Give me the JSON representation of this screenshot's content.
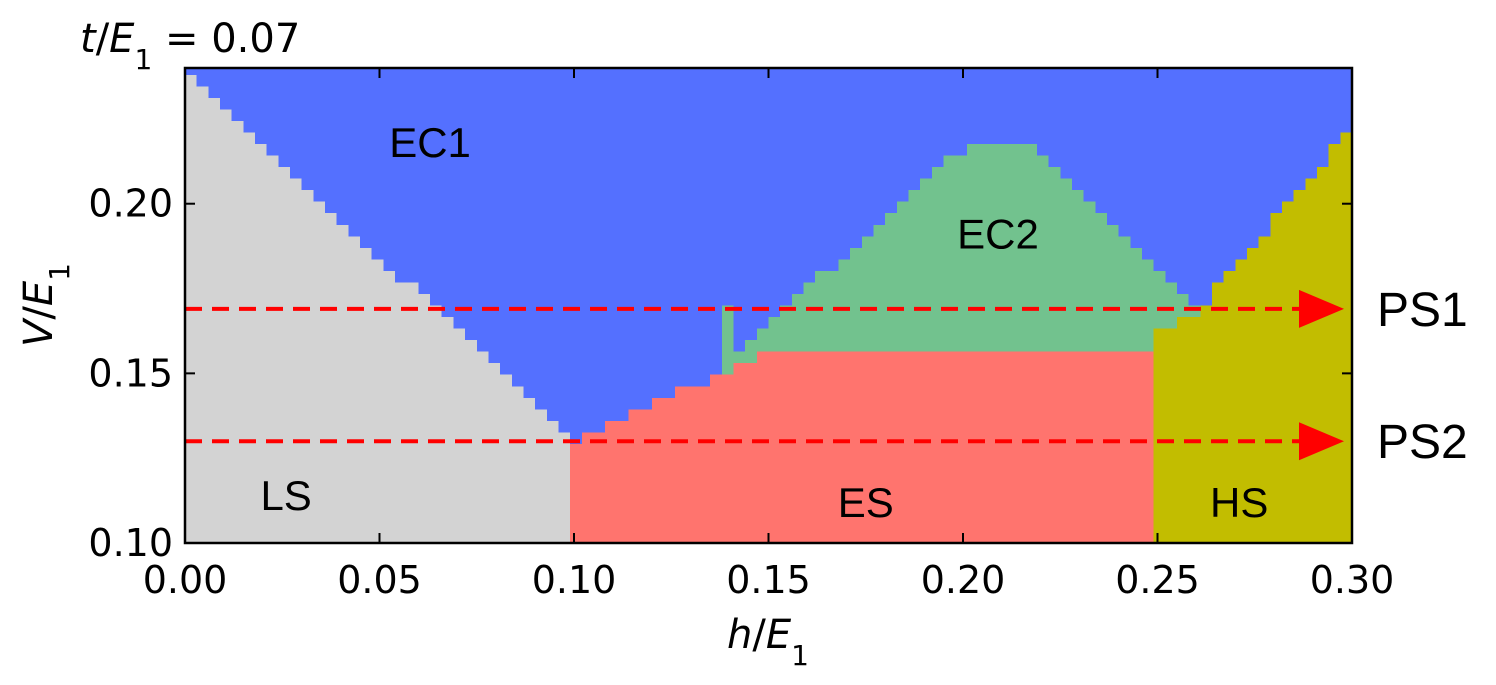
{
  "chart_data": {
    "type": "heatmap",
    "title": "",
    "parameter_label": "t/E1 = 0.07",
    "parameter_parts": {
      "var": "t",
      "sub": "1",
      "value": " = 0.07"
    },
    "xlabel": "h/E1",
    "xlabel_parts": {
      "var": "h",
      "sub": "1"
    },
    "ylabel": "V/E1",
    "ylabel_parts": {
      "var": "V",
      "sub": "1"
    },
    "xlim": [
      0.0,
      0.3
    ],
    "ylim": [
      0.1,
      0.24
    ],
    "x_ticks": [
      {
        "value": 0.0,
        "label": "0.00"
      },
      {
        "value": 0.05,
        "label": "0.05"
      },
      {
        "value": 0.1,
        "label": "0.10"
      },
      {
        "value": 0.15,
        "label": "0.15"
      },
      {
        "value": 0.2,
        "label": "0.20"
      },
      {
        "value": 0.25,
        "label": "0.25"
      },
      {
        "value": 0.3,
        "label": "0.30"
      }
    ],
    "y_ticks": [
      {
        "value": 0.1,
        "label": "0.10"
      },
      {
        "value": 0.15,
        "label": "0.15"
      },
      {
        "value": 0.2,
        "label": "0.20"
      }
    ],
    "grid": false,
    "phases": [
      {
        "name": "LS",
        "color": "#d3d3d3"
      },
      {
        "name": "EC1",
        "color": "#5470ff"
      },
      {
        "name": "EC2",
        "color": "#72c28e"
      },
      {
        "name": "ES",
        "color": "#ff746e"
      },
      {
        "name": "HS",
        "color": "#c2bd00"
      }
    ],
    "boundaries": {
      "LS_EC1_top": [
        [
          0.0,
          0.24
        ],
        [
          0.1,
          0.132
        ]
      ],
      "LS_ES_vertical_x": 0.1,
      "ES_HS_vertical_x": 0.25,
      "ES_top": [
        [
          0.1,
          0.132
        ],
        [
          0.14,
          0.153
        ],
        [
          0.15,
          0.158
        ],
        [
          0.25,
          0.158
        ]
      ],
      "EC2_top": [
        [
          0.14,
          0.156
        ],
        [
          0.2,
          0.218
        ],
        [
          0.22,
          0.218
        ],
        [
          0.26,
          0.17
        ]
      ],
      "HS_top": [
        [
          0.25,
          0.163
        ],
        [
          0.26,
          0.17
        ],
        [
          0.3,
          0.224
        ]
      ]
    },
    "region_labels": [
      {
        "text": "EC1",
        "x": 0.063,
        "y": 0.217
      },
      {
        "text": "EC2",
        "x": 0.209,
        "y": 0.19
      },
      {
        "text": "LS",
        "x": 0.026,
        "y": 0.113
      },
      {
        "text": "ES",
        "x": 0.175,
        "y": 0.111
      },
      {
        "text": "HS",
        "x": 0.271,
        "y": 0.111
      }
    ],
    "paths": [
      {
        "name": "PS1",
        "y": 0.169,
        "x_start": 0.0,
        "x_end": 0.3,
        "color": "#ff0000"
      },
      {
        "name": "PS2",
        "y": 0.13,
        "x_start": 0.0,
        "x_end": 0.3,
        "color": "#ff0000"
      }
    ]
  }
}
